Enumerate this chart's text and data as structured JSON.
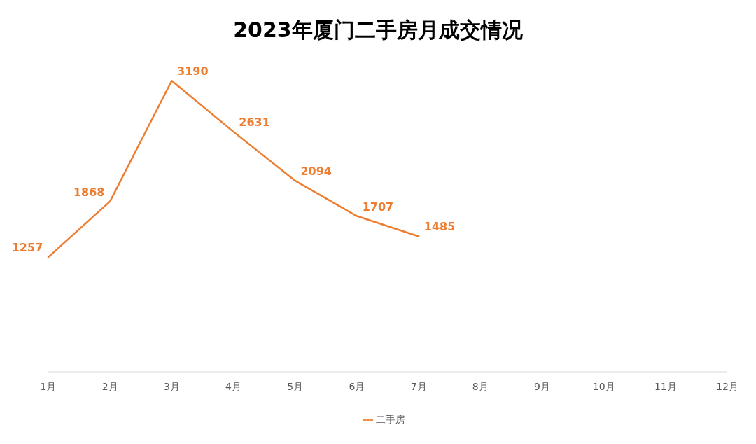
{
  "chart_data": {
    "type": "line",
    "title": "2023年厦门二手房月成交情况",
    "categories": [
      "1月",
      "2月",
      "3月",
      "4月",
      "5月",
      "6月",
      "7月",
      "8月",
      "9月",
      "10月",
      "11月",
      "12月"
    ],
    "series": [
      {
        "name": "二手房",
        "color": "#ed7d31",
        "values": [
          1257,
          1868,
          3190,
          2631,
          2094,
          1707,
          1485,
          null,
          null,
          null,
          null,
          null
        ]
      }
    ],
    "data_labels": true,
    "grid": false,
    "legend": "bottom",
    "marker": "none",
    "line_style": "solid"
  }
}
